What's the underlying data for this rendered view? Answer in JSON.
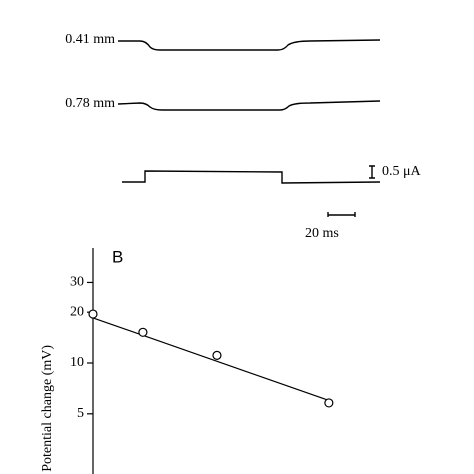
{
  "panel_a": {
    "trace_labels": [
      "0.41 mm",
      "0.78 mm"
    ],
    "current_scale": "0.5 μA",
    "time_scale": "20 ms"
  },
  "chart_data": {
    "type": "scatter",
    "panel_label": "B",
    "y_label": "Potential change (mV)",
    "series": [
      {
        "x": [
          0,
          0.165,
          0.41,
          0.78
        ],
        "values": [
          19.5,
          15.2,
          11.1,
          5.8
        ],
        "color": "#000000",
        "marker": "open-circle"
      }
    ],
    "fit_line": {
      "x": [
        0,
        0.78
      ],
      "values": [
        18.5,
        6.0
      ]
    },
    "xlim": [
      0,
      1.26
    ],
    "ylim": [
      2.2,
      48
    ],
    "yticks": [
      5,
      10,
      20,
      30
    ],
    "log_y": true
  }
}
